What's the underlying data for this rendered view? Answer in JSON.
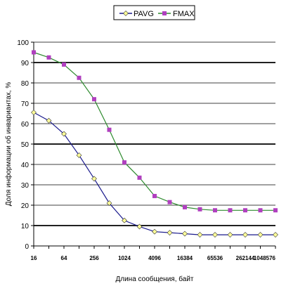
{
  "chart_data": {
    "type": "line",
    "x_scale": "log2",
    "x_tick_labels": [
      "16",
      "64",
      "256",
      "1024",
      "4096",
      "16384",
      "65536",
      "262144",
      "1048576"
    ],
    "x": [
      16,
      32,
      64,
      128,
      256,
      512,
      1024,
      2048,
      4096,
      8192,
      16384,
      32768,
      65536,
      131072,
      262144,
      524288,
      1048576
    ],
    "xlim": [
      16,
      1048576
    ],
    "ylim": [
      0,
      100
    ],
    "y_tick_labels": [
      "0",
      "10",
      "20",
      "30",
      "40",
      "50",
      "60",
      "70",
      "80",
      "90",
      "100"
    ],
    "xlabel": "Длина сообщения, байт",
    "ylabel": "Доля информации об инвариантах, %",
    "legend": {
      "position": "top",
      "entries": [
        "PAVG",
        "FMAX"
      ]
    },
    "grid": {
      "major_lines_at": [
        10,
        50,
        90
      ]
    },
    "series": [
      {
        "name": "PAVG",
        "color": "#1a1a8c",
        "marker": "diamond",
        "marker_color": "#ffff99",
        "values": [
          65.5,
          61.5,
          55,
          44.5,
          33,
          21,
          12.5,
          9.5,
          7,
          6.5,
          6,
          5.5,
          5.5,
          5.5,
          5.5,
          5.5,
          5.5
        ]
      },
      {
        "name": "FMAX",
        "color": "#2e8b2e",
        "marker": "square",
        "marker_color": "#b03fbf",
        "values": [
          95,
          92.5,
          89,
          82.5,
          72,
          57,
          41,
          33.5,
          24.5,
          21.5,
          19,
          18,
          17.5,
          17.5,
          17.5,
          17.5,
          17.5
        ]
      }
    ]
  }
}
